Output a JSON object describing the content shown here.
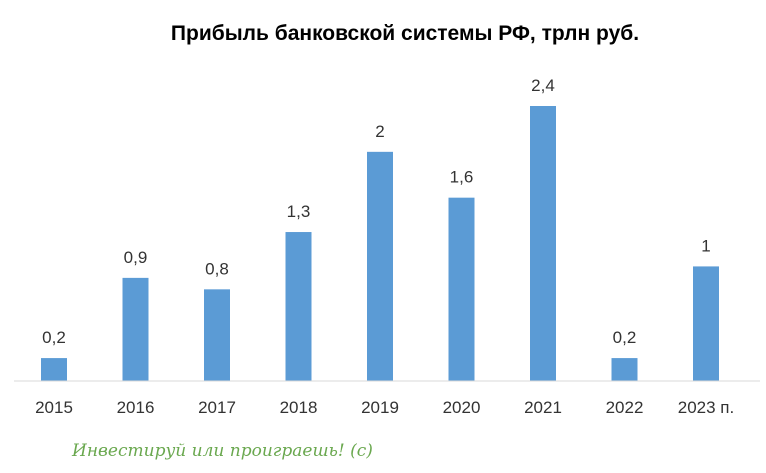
{
  "chart_data": {
    "type": "bar",
    "title": "Прибыль банковской системы РФ, трлн руб.",
    "xlabel": "",
    "ylabel": "",
    "categories": [
      "2015",
      "2016",
      "2017",
      "2018",
      "2019",
      "2020",
      "2021",
      "2022",
      "2023 п."
    ],
    "values": [
      0.2,
      0.9,
      0.8,
      1.3,
      2,
      1.6,
      2.4,
      0.2,
      1
    ],
    "data_labels": [
      "0,2",
      "0,9",
      "0,8",
      "1,3",
      "2",
      "1,6",
      "2,4",
      "0,2",
      "1"
    ],
    "ylim": [
      0,
      2.4
    ],
    "grid": false,
    "legend": "none",
    "bar_color": "#5b9bd5"
  },
  "watermark": {
    "text": "Инвестируй или проиграешь! (с)",
    "color": "#6aa84f"
  }
}
